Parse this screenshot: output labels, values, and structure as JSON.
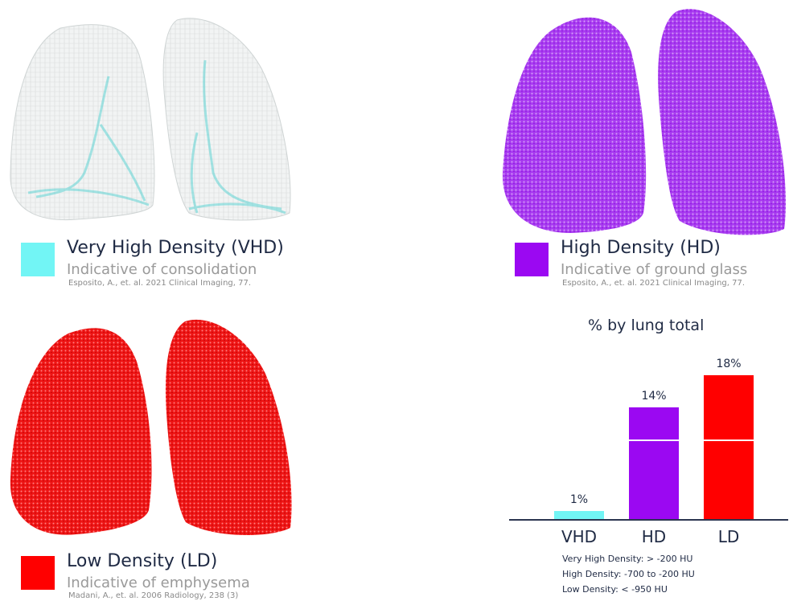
{
  "panels": {
    "vhd": {
      "title": "Very High Density (VHD)",
      "subtitle": "Indicative of consolidation",
      "citation": "Esposito, A., et. al. 2021 Clinical Imaging, 77.",
      "color": "#72f5f5"
    },
    "hd": {
      "title": "High Density (HD)",
      "subtitle": "Indicative of ground glass",
      "citation": "Esposito, A., et. al. 2021 Clinical Imaging, 77.",
      "color": "#9b08f2"
    },
    "ld": {
      "title": "Low Density (LD)",
      "subtitle": "Indicative of emphysema",
      "citation": "Madani, A., et. al. 2006 Radiology, 238 (3)",
      "color": "#ff0000"
    }
  },
  "chart_data": {
    "type": "bar",
    "title": "% by lung total",
    "categories": [
      "VHD",
      "HD",
      "LD"
    ],
    "values": [
      1,
      14,
      18
    ],
    "value_labels": [
      "1%",
      "14%",
      "18%"
    ],
    "colors": [
      "#72f5f5",
      "#9b08f2",
      "#ff0000"
    ],
    "ylim": [
      0,
      18
    ],
    "notes": [
      "Very High Density: > -200 HU",
      "High Density: -700 to -200 HU",
      "Low Density: < -950 HU"
    ]
  }
}
